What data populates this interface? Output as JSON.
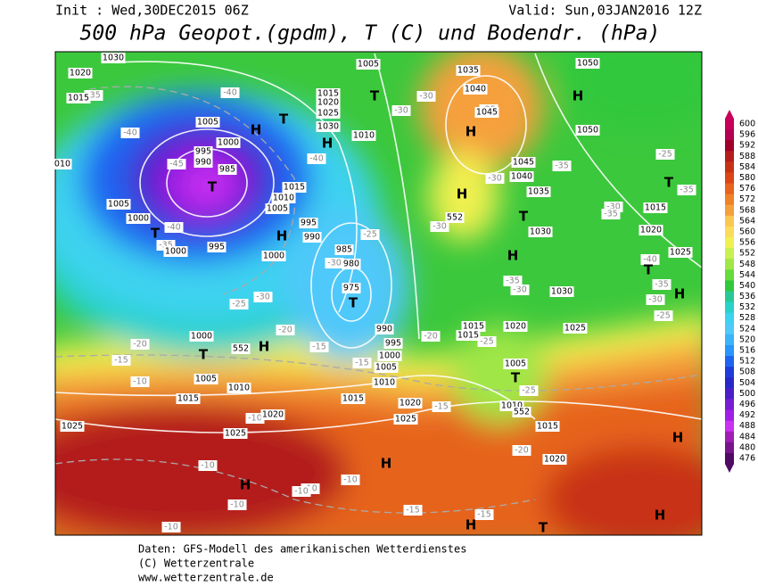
{
  "header": {
    "init": "Init : Wed,30DEC2015 06Z",
    "valid": "Valid: Sun,03JAN2016 12Z",
    "title": "500 hPa Geopot.(gpdm), T (C) und Bodendr. (hPa)"
  },
  "footer": [
    "Daten: GFS-Modell des amerikanischen Wetterdienstes",
    "(C) Wetterzentrale",
    "www.wetterzentrale.de"
  ],
  "colorbar": {
    "levels": [
      600,
      596,
      592,
      588,
      584,
      580,
      576,
      572,
      568,
      564,
      560,
      556,
      552,
      548,
      544,
      540,
      536,
      532,
      528,
      524,
      520,
      516,
      512,
      508,
      504,
      500,
      496,
      492,
      488,
      484,
      480,
      476
    ],
    "colors": [
      "#c8005a",
      "#b40050",
      "#a00028",
      "#b41e1e",
      "#c83214",
      "#dc4614",
      "#e6641e",
      "#f08228",
      "#f5a03c",
      "#fac850",
      "#fadc5a",
      "#f0f050",
      "#c8f050",
      "#a0e646",
      "#64dc3c",
      "#32c83c",
      "#28c896",
      "#28d2c8",
      "#3cd2f0",
      "#50c8fa",
      "#3cb4fa",
      "#2896fa",
      "#1e64f0",
      "#1e3cdc",
      "#2828c8",
      "#4b1ec8",
      "#781ed2",
      "#a01ee6",
      "#c832f0",
      "#a01eb4",
      "#78148c",
      "#500a64"
    ]
  },
  "map": {
    "pressure_labels": [
      "1030",
      "1020",
      "1015",
      "1005",
      "1000",
      "995",
      "990",
      "985",
      "010",
      "1005",
      "1000",
      "1000",
      "995",
      "1010",
      "1015",
      "1005",
      "1000",
      "1005",
      "1015",
      "1020",
      "1025",
      "1030",
      "1010",
      "995",
      "990",
      "985",
      "980",
      "975",
      "1035",
      "1040",
      "1045",
      "1050",
      "1050",
      "1045",
      "1040",
      "1035",
      "1030",
      "1030",
      "1015",
      "1020",
      "1025",
      "1000",
      "1005",
      "1010",
      "1015",
      "1020",
      "1025",
      "1025",
      "990",
      "995",
      "1000",
      "1005",
      "1010",
      "1015",
      "1020",
      "1025",
      "1015",
      "1015",
      "1020",
      "1025",
      "1005",
      "1010",
      "1015",
      "1020",
      "552",
      "552",
      "552"
    ],
    "centers": [
      "T",
      "T",
      "H",
      "T",
      "T",
      "H",
      "H",
      "T",
      "H",
      "H",
      "H",
      "T",
      "H",
      "T",
      "T",
      "H",
      "T",
      "H",
      "T",
      "H",
      "H",
      "H",
      "H",
      "H",
      "T"
    ],
    "temperature_labels": [
      "-35",
      "-40",
      "-40",
      "-45",
      "-40",
      "-35",
      "-30",
      "-25",
      "-20",
      "-15",
      "-10",
      "-10",
      "-20",
      "-15",
      "-15",
      "-10",
      "-10",
      "-10",
      "-10",
      "-10",
      "-10",
      "-15",
      "-15",
      "-20",
      "-15",
      "-25",
      "-25",
      "-20",
      "-25",
      "-30",
      "-40",
      "-30",
      "-30",
      "-30",
      "-30",
      "-35",
      "-35",
      "-25",
      "-35",
      "-30",
      "-35",
      "-40",
      "-35",
      "-30",
      "-25",
      "-25",
      "-30"
    ]
  }
}
